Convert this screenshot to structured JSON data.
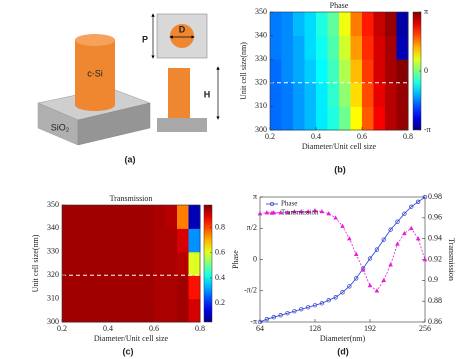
{
  "diagram": {
    "material_top": "c-Si",
    "material_base": "SiO₂",
    "period": "P",
    "diameter": "D",
    "height": "H",
    "caption": "(a)"
  },
  "chart_data": [
    {
      "type": "heatmap",
      "title": "Phase",
      "x_label": "Diameter/Unit cell size",
      "y_label": "Unit cell size(nm)",
      "caption": "(b)",
      "x": [
        0.225,
        0.275,
        0.325,
        0.375,
        0.425,
        0.475,
        0.525,
        0.575,
        0.625,
        0.675,
        0.725,
        0.775
      ],
      "y": [
        305,
        315,
        325,
        335,
        345
      ],
      "z": [
        [
          -1.7,
          -1.6,
          -1.4,
          -1.2,
          -0.9,
          -0.6,
          -0.1,
          0.8,
          1.8,
          2.4,
          2.8,
          3.0
        ],
        [
          -1.7,
          -1.6,
          -1.4,
          -1.2,
          -0.9,
          -0.5,
          0.1,
          1.0,
          1.9,
          2.5,
          2.8,
          3.0
        ],
        [
          -1.7,
          -1.5,
          -1.3,
          -1.1,
          -0.8,
          -0.4,
          0.3,
          1.2,
          2.0,
          2.6,
          2.9,
          3.1
        ],
        [
          -1.6,
          -1.5,
          -1.3,
          -1.0,
          -0.7,
          -0.3,
          0.5,
          1.4,
          2.1,
          2.6,
          2.9,
          -2.8
        ],
        [
          -1.6,
          -1.5,
          -1.2,
          -1.0,
          -0.6,
          -0.2,
          0.7,
          1.6,
          2.2,
          2.7,
          3.0,
          -2.9
        ]
      ],
      "xlim": [
        0.2,
        0.8
      ],
      "xticks": [
        0.2,
        0.4,
        0.6,
        0.8
      ],
      "ylim": [
        300,
        350
      ],
      "yticks": [
        300,
        310,
        320,
        330,
        340,
        350
      ],
      "clim": [
        -3.1416,
        3.1416
      ],
      "cticks": [
        {
          "value": 3.1416,
          "label": "π"
        },
        0,
        {
          "value": -3.1416,
          "label": "-π"
        }
      ],
      "colormap": "jet",
      "marker_line_y": 320
    },
    {
      "type": "heatmap",
      "title": "Transmission",
      "x_label": "Diameter/Unit cell size",
      "y_label": "Unit cell size(nm)",
      "caption": "(c)",
      "x": [
        0.225,
        0.275,
        0.325,
        0.375,
        0.425,
        0.475,
        0.525,
        0.575,
        0.625,
        0.675,
        0.725,
        0.775
      ],
      "y": [
        305,
        315,
        325,
        335,
        345
      ],
      "z": [
        [
          0.95,
          0.95,
          0.95,
          0.95,
          0.95,
          0.95,
          0.95,
          0.95,
          0.94,
          0.94,
          0.95,
          0.9
        ],
        [
          0.95,
          0.95,
          0.95,
          0.95,
          0.95,
          0.95,
          0.95,
          0.95,
          0.94,
          0.94,
          0.95,
          0.85
        ],
        [
          0.95,
          0.95,
          0.95,
          0.95,
          0.95,
          0.95,
          0.95,
          0.95,
          0.94,
          0.94,
          0.93,
          0.6
        ],
        [
          0.95,
          0.95,
          0.95,
          0.95,
          0.95,
          0.95,
          0.95,
          0.95,
          0.94,
          0.94,
          0.9,
          0.3
        ],
        [
          0.95,
          0.95,
          0.95,
          0.95,
          0.95,
          0.95,
          0.95,
          0.95,
          0.94,
          0.93,
          0.75,
          0.1
        ]
      ],
      "xlim": [
        0.2,
        0.8
      ],
      "xticks": [
        0.2,
        0.4,
        0.6,
        0.8
      ],
      "ylim": [
        300,
        350
      ],
      "yticks": [
        300,
        310,
        320,
        330,
        340,
        350
      ],
      "clim": [
        0.05,
        0.98
      ],
      "cticks": [
        0.2,
        0.4,
        0.6,
        0.8
      ],
      "colormap": "jet",
      "marker_line_y": 320
    },
    {
      "type": "line",
      "x_label": "Diameter(nm)",
      "y_label": "Phase",
      "y2_label": "Transmission",
      "caption": "(d)",
      "x": [
        64,
        72,
        80,
        88,
        96,
        104,
        112,
        120,
        128,
        136,
        144,
        152,
        160,
        168,
        176,
        184,
        192,
        200,
        208,
        216,
        224,
        232,
        240,
        248,
        256
      ],
      "series": [
        {
          "name": "Phase",
          "color": "#2a3bd0",
          "marker": "o",
          "axis": "y",
          "values": [
            -3.14,
            -3.0,
            -2.9,
            -2.8,
            -2.7,
            -2.6,
            -2.5,
            -2.4,
            -2.3,
            -2.2,
            -2.05,
            -1.9,
            -1.65,
            -1.35,
            -0.95,
            -0.45,
            0.05,
            0.5,
            1.0,
            1.5,
            1.9,
            2.3,
            2.65,
            2.9,
            3.14
          ]
        },
        {
          "name": "Transmission",
          "color": "#e020d8",
          "marker": "^",
          "axis": "y2",
          "values": [
            0.964,
            0.965,
            0.965,
            0.965,
            0.965,
            0.966,
            0.966,
            0.966,
            0.967,
            0.966,
            0.964,
            0.96,
            0.952,
            0.94,
            0.925,
            0.91,
            0.895,
            0.89,
            0.9,
            0.915,
            0.935,
            0.945,
            0.95,
            0.94,
            0.92
          ]
        }
      ],
      "xlim": [
        64,
        256
      ],
      "xticks": [
        64,
        128,
        192,
        256
      ],
      "ylim": [
        -3.1416,
        3.1416
      ],
      "yticks": [
        {
          "value": -3.1416,
          "label": "-π"
        },
        {
          "value": -1.5708,
          "label": "-π/2"
        },
        0,
        {
          "value": 1.5708,
          "label": "π/2"
        },
        {
          "value": 3.1416,
          "label": "π"
        }
      ],
      "y2lim": [
        0.86,
        0.98
      ],
      "y2ticks": [
        0.86,
        0.88,
        0.9,
        0.92,
        0.94,
        0.96,
        0.98
      ],
      "legend": "upper left"
    }
  ]
}
